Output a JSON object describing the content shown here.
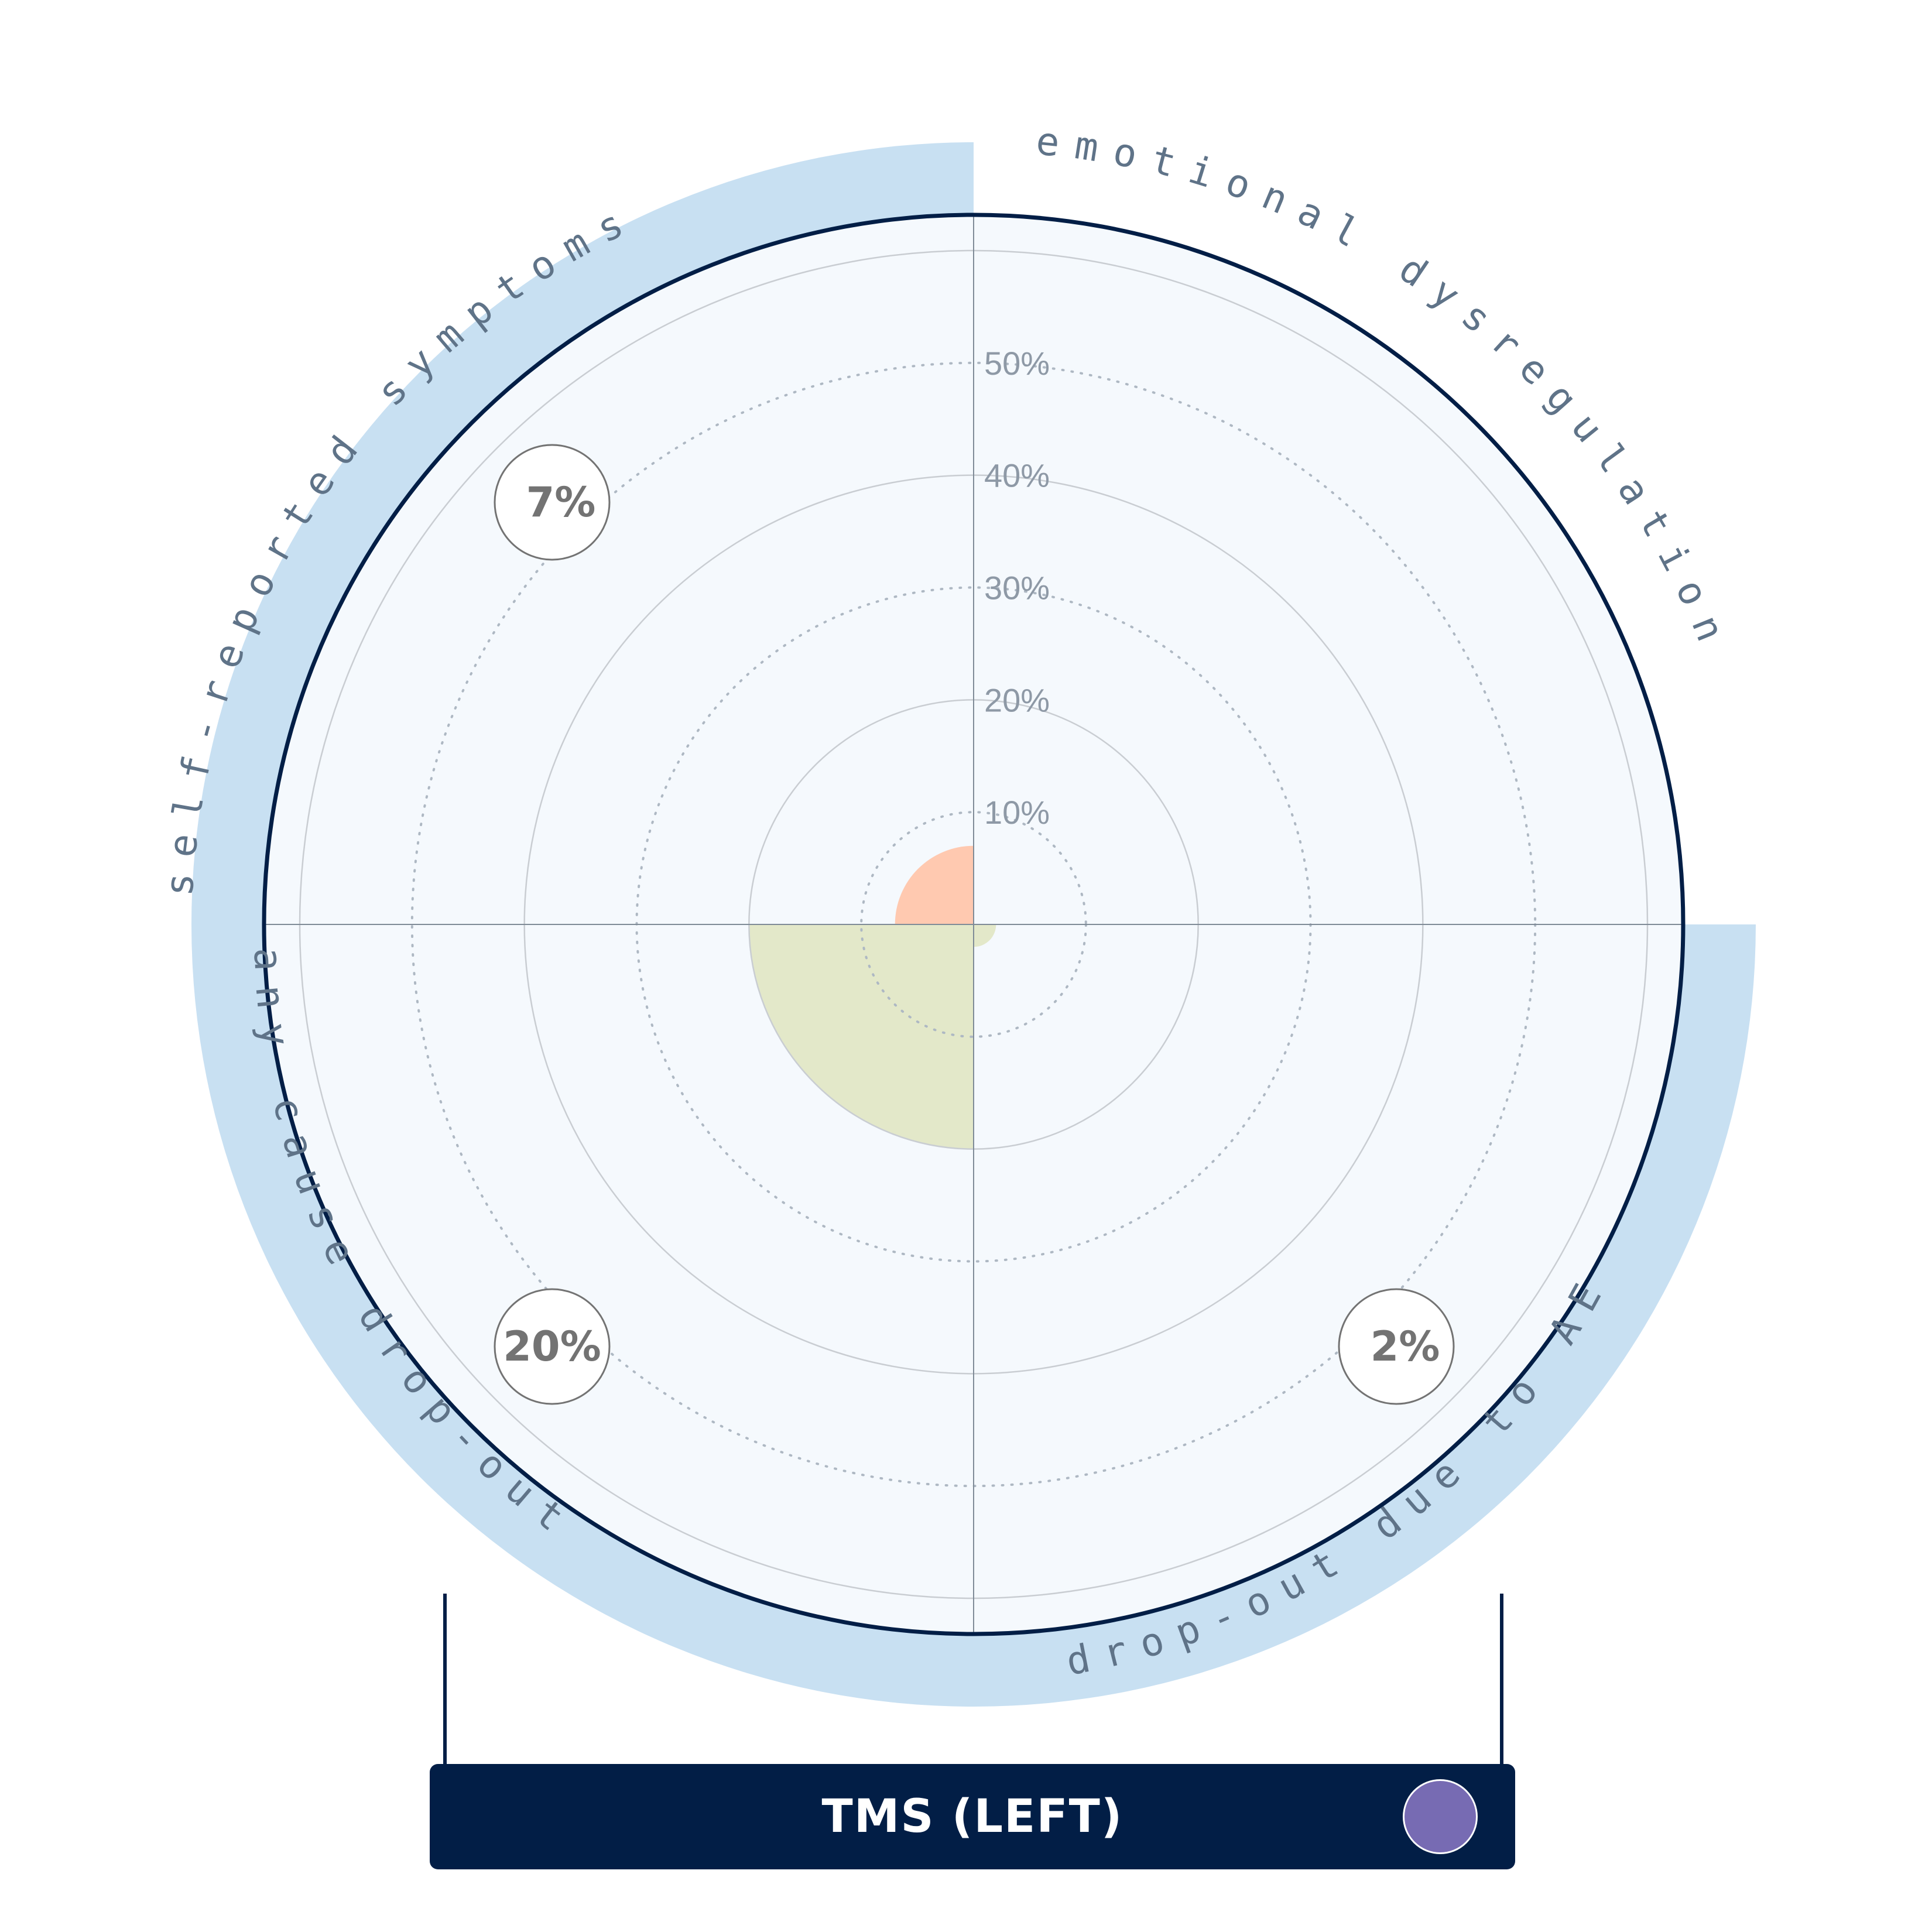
{
  "chart_data": {
    "type": "polar-area",
    "title": "TMS (LEFT)",
    "rmax_percent": 60,
    "ring_percents": [
      10,
      20,
      30,
      40,
      50,
      60
    ],
    "tick_labels": [
      "10%",
      "20%",
      "30%",
      "40%",
      "50%"
    ],
    "sectors": [
      {
        "label": "emotional dysregulation",
        "value": 0,
        "badge": "",
        "color": "#f6bfa4"
      },
      {
        "label": "self-reported symptoms",
        "value": 7,
        "badge": "7%",
        "color": "#ffc9b0"
      },
      {
        "label": "any cause drop-out",
        "value": 20,
        "badge": "20%",
        "color": "#e3e8c9"
      },
      {
        "label": "drop-out due to AE",
        "value": 2,
        "badge": "2%",
        "color": "#e3e8c9"
      }
    ],
    "colors": {
      "plot_background": "#f5f9fd",
      "outer_band": "#c8e0f2",
      "outer_ring": "#021e46",
      "title_bar": "#021e46",
      "title_dot": "#776bb3"
    }
  }
}
